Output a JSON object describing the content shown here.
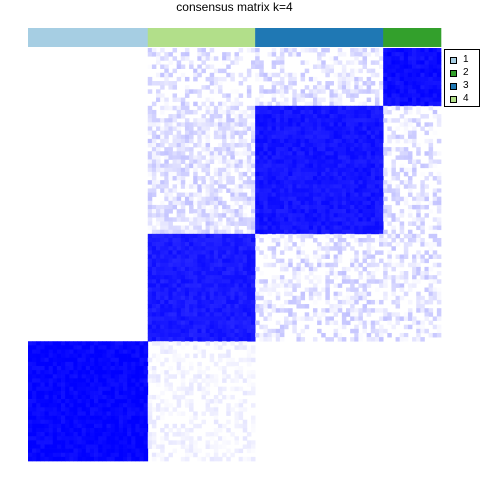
{
  "chart_data": {
    "type": "heatmap",
    "title": "consensus matrix k=4",
    "xlabel": "",
    "ylabel": "",
    "n_samples": 100,
    "value_range": [
      0,
      1
    ],
    "color_low": "#ffffff",
    "color_high": "#0000ff",
    "class_colors": {
      "1": "#a6cee3",
      "2": "#33a02c",
      "3": "#1f78b4",
      "4": "#b2df8a"
    },
    "column_class_order": [
      "1",
      "4",
      "3",
      "2"
    ],
    "column_class_counts": [
      29,
      26,
      31,
      14
    ],
    "consensus_blocks": [
      {
        "rows": [
          0,
          14
        ],
        "cols": [
          86,
          100
        ],
        "value": 0.95
      },
      {
        "rows": [
          14,
          45
        ],
        "cols": [
          55,
          86
        ],
        "value": 0.92
      },
      {
        "rows": [
          45,
          71
        ],
        "cols": [
          29,
          55
        ],
        "value": 0.9
      },
      {
        "rows": [
          71,
          100
        ],
        "cols": [
          0,
          29
        ],
        "value": 0.98
      }
    ],
    "background_noise": [
      {
        "rows": [
          0,
          45
        ],
        "cols": [
          29,
          100
        ],
        "value": 0.12
      },
      {
        "rows": [
          14,
          71
        ],
        "cols": [
          29,
          55
        ],
        "value": 0.1
      },
      {
        "rows": [
          45,
          71
        ],
        "cols": [
          55,
          100
        ],
        "value": 0.12
      },
      {
        "rows": [
          71,
          100
        ],
        "cols": [
          29,
          55
        ],
        "value": 0.05
      }
    ],
    "legend": {
      "position": "right",
      "entries": [
        {
          "label": "1",
          "color": "#a6cee3"
        },
        {
          "label": "2",
          "color": "#33a02c"
        },
        {
          "label": "3",
          "color": "#1f78b4"
        },
        {
          "label": "4",
          "color": "#b2df8a"
        }
      ]
    }
  }
}
